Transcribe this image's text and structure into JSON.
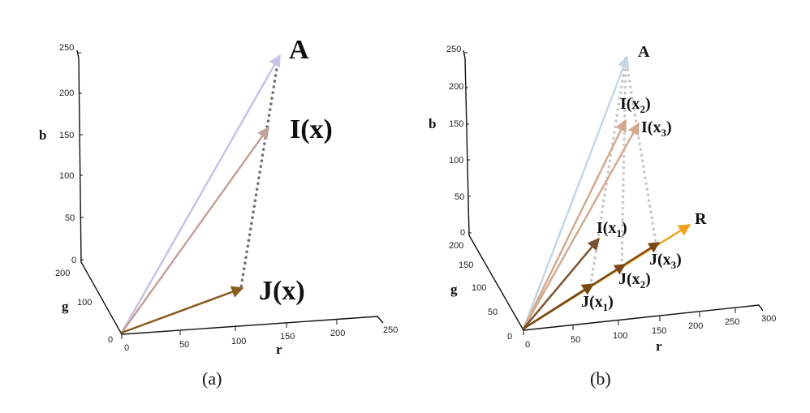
{
  "colors": {
    "A": "#c9c2e6",
    "I": "#c4a29c",
    "J": "#8a5a1e",
    "dots": "#6e6e6e",
    "A_b": "#c5d6e6",
    "I1_b": "#7a5230",
    "I23_b": "#d3aa90",
    "J_b": "#7a4a14",
    "R_b": "#f0a020",
    "dots_b": "#c8c8c8"
  },
  "panel_a": {
    "caption": "(a)",
    "b_axis": {
      "label": "b",
      "ticks": [
        "250",
        "200",
        "150",
        "100",
        "50",
        "0"
      ]
    },
    "g_axis": {
      "label": "g",
      "ticks": [
        "200",
        "100",
        "0"
      ]
    },
    "r_axis": {
      "label": "r",
      "ticks": [
        "0",
        "50",
        "100",
        "150",
        "200",
        "250"
      ]
    },
    "labels": {
      "A": "A",
      "I": "I(x)",
      "J": "J(x)"
    }
  },
  "panel_b": {
    "caption": "(b)",
    "b_axis": {
      "label": "b",
      "ticks": [
        "250",
        "200",
        "150",
        "100",
        "50",
        "0"
      ]
    },
    "g_axis": {
      "label": "g",
      "ticks": [
        "200",
        "150",
        "100",
        "50",
        "0"
      ]
    },
    "r_axis": {
      "label": "r",
      "ticks": [
        "0",
        "50",
        "100",
        "150",
        "200",
        "250",
        "300"
      ]
    },
    "labels": {
      "A": "A",
      "R": "R",
      "I": "I(x",
      "J": "J(x",
      "close": ")",
      "sub1": "1",
      "sub2": "2",
      "sub3": "3"
    }
  }
}
